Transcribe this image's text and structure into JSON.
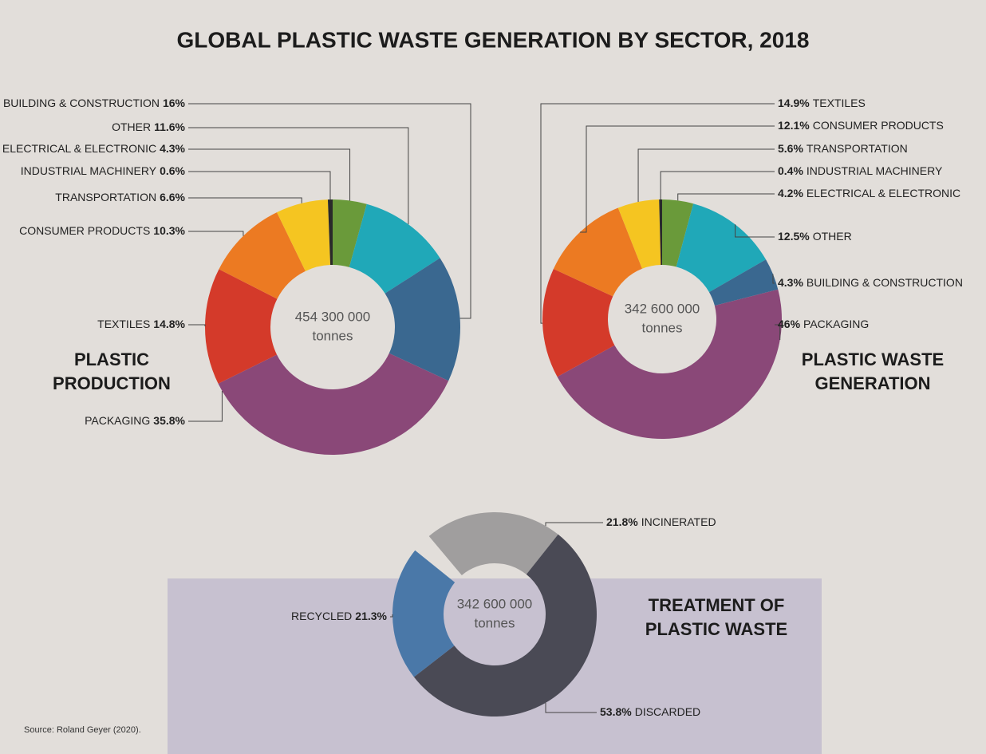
{
  "title": "GLOBAL PLASTIC WASTE GENERATION BY SECTOR, 2018",
  "source": "Source: Roland Geyer (2020).",
  "chart_data": [
    {
      "type": "pie",
      "title": [
        "PLASTIC",
        "PRODUCTION"
      ],
      "center_label": "454 300 000",
      "center_unit": "tonnes",
      "categories": [
        "ELECTRICAL & ELECTRONIC",
        "OTHER",
        "BUILDING & CONSTRUCTION",
        "PACKAGING",
        "TEXTILES",
        "CONSUMER PRODUCTS",
        "TRANSPORTATION",
        "INDUSTRIAL MACHINERY"
      ],
      "values": [
        4.3,
        11.6,
        16,
        35.8,
        14.8,
        10.3,
        6.6,
        0.6
      ],
      "value_labels": [
        "4.3%",
        "11.6%",
        "16%",
        "35.8%",
        "14.8%",
        "10.3%",
        "6.6%",
        "0.6%"
      ],
      "colors": [
        "#6a9a3a",
        "#20a8b8",
        "#3a6890",
        "#8a4878",
        "#d43a2a",
        "#ec7a22",
        "#f5c521",
        "#2a2a2a"
      ]
    },
    {
      "type": "pie",
      "title": [
        "PLASTIC WASTE",
        "GENERATION"
      ],
      "center_label": "342 600 000",
      "center_unit": "tonnes",
      "categories": [
        "ELECTRICAL & ELECTRONIC",
        "OTHER",
        "BUILDING & CONSTRUCTION",
        "PACKAGING",
        "TEXTILES",
        "CONSUMER PRODUCTS",
        "TRANSPORTATION",
        "INDUSTRIAL MACHINERY"
      ],
      "values": [
        4.2,
        12.5,
        4.3,
        46,
        14.9,
        12.1,
        5.6,
        0.4
      ],
      "value_labels": [
        "4.2%",
        "12.5%",
        "4.3%",
        "46%",
        "14.9%",
        "12.1%",
        "5.6%",
        "0.4%"
      ],
      "colors": [
        "#6a9a3a",
        "#20a8b8",
        "#3a6890",
        "#8a4878",
        "#d43a2a",
        "#ec7a22",
        "#f5c521",
        "#2a2a2a"
      ]
    },
    {
      "type": "pie",
      "title": [
        "TREATMENT OF",
        "PLASTIC WASTE"
      ],
      "center_label": "342 600 000",
      "center_unit": "tonnes",
      "categories": [
        "INCINERATED",
        "DISCARDED",
        "RECYCLED"
      ],
      "values": [
        21.8,
        53.8,
        21.3
      ],
      "value_labels": [
        "21.8%",
        "53.8%",
        "21.3%"
      ],
      "colors": [
        "#a09e9e",
        "#4a4a55",
        "#4a78a8"
      ]
    }
  ]
}
